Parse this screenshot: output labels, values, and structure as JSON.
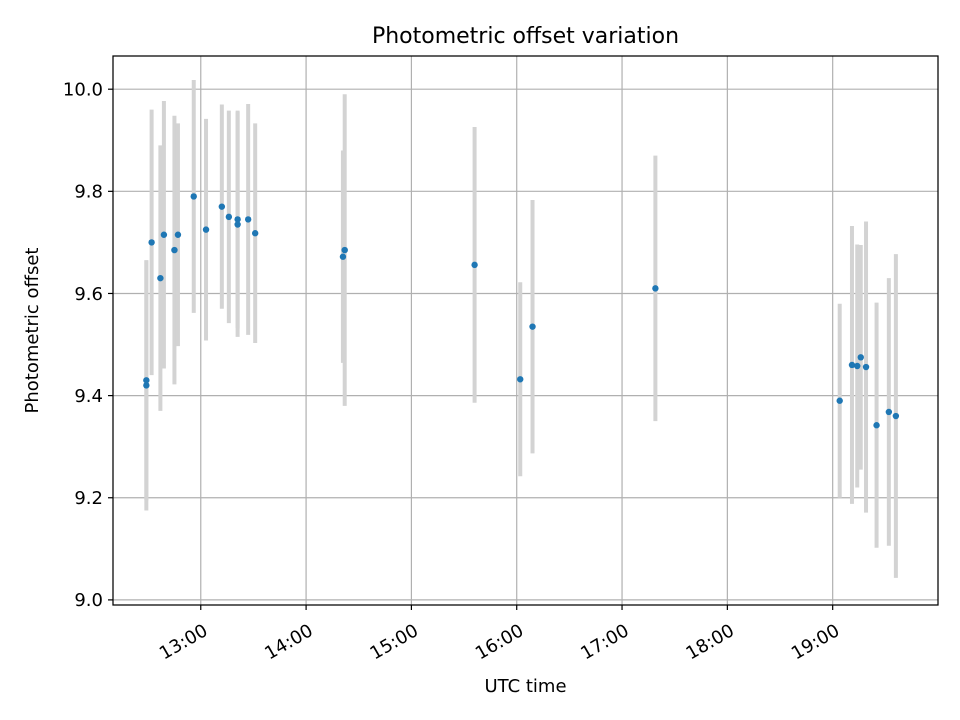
{
  "chart_data": {
    "type": "scatter",
    "title": "Photometric offset variation",
    "xlabel": "UTC time",
    "ylabel": "Photometric offset",
    "xlim": [
      "12:10",
      "20:00"
    ],
    "ylim": [
      8.99,
      10.065
    ],
    "x_ticks": [
      "13:00",
      "14:00",
      "15:00",
      "16:00",
      "17:00",
      "18:00",
      "19:00"
    ],
    "y_ticks": [
      9.0,
      9.2,
      9.4,
      9.6,
      9.8,
      10.0
    ],
    "y_tick_labels": [
      "9.0",
      "9.2",
      "9.4",
      "9.6",
      "9.8",
      "10.0"
    ],
    "grid": true,
    "colors": {
      "point": "#1f77b4",
      "errorbar": "#d3d3d3",
      "grid": "#b0b0b0"
    },
    "series": [
      {
        "points": [
          {
            "x": "12:29",
            "y": 9.42,
            "err": 0.245
          },
          {
            "x": "12:29",
            "y": 9.43,
            "err": 0.235
          },
          {
            "x": "12:32",
            "y": 9.7,
            "err": 0.26
          },
          {
            "x": "12:37",
            "y": 9.63,
            "err": 0.26
          },
          {
            "x": "12:39",
            "y": 9.715,
            "err": 0.262
          },
          {
            "x": "12:45",
            "y": 9.685,
            "err": 0.263
          },
          {
            "x": "12:47",
            "y": 9.715,
            "err": 0.218
          },
          {
            "x": "12:56",
            "y": 9.79,
            "err": 0.228
          },
          {
            "x": "13:03",
            "y": 9.725,
            "err": 0.217
          },
          {
            "x": "13:12",
            "y": 9.77,
            "err": 0.2
          },
          {
            "x": "13:16",
            "y": 9.75,
            "err": 0.208
          },
          {
            "x": "13:21",
            "y": 9.745,
            "err": 0.213
          },
          {
            "x": "13:21",
            "y": 9.735,
            "err": 0.22
          },
          {
            "x": "13:27",
            "y": 9.745,
            "err": 0.226
          },
          {
            "x": "13:31",
            "y": 9.718,
            "err": 0.215
          },
          {
            "x": "14:21",
            "y": 9.672,
            "err": 0.208
          },
          {
            "x": "14:22",
            "y": 9.685,
            "err": 0.305
          },
          {
            "x": "15:36",
            "y": 9.656,
            "err": 0.27
          },
          {
            "x": "16:02",
            "y": 9.432,
            "err": 0.19
          },
          {
            "x": "16:09",
            "y": 9.535,
            "err": 0.248
          },
          {
            "x": "17:19",
            "y": 9.61,
            "err": 0.26
          },
          {
            "x": "19:04",
            "y": 9.39,
            "err": 0.19
          },
          {
            "x": "19:11",
            "y": 9.46,
            "err": 0.272
          },
          {
            "x": "19:14",
            "y": 9.458,
            "err": 0.238
          },
          {
            "x": "19:16",
            "y": 9.475,
            "err": 0.22
          },
          {
            "x": "19:19",
            "y": 9.456,
            "err": 0.285
          },
          {
            "x": "19:25",
            "y": 9.342,
            "err": 0.24
          },
          {
            "x": "19:32",
            "y": 9.368,
            "err": 0.262
          },
          {
            "x": "19:36",
            "y": 9.36,
            "err": 0.317
          }
        ]
      }
    ]
  }
}
